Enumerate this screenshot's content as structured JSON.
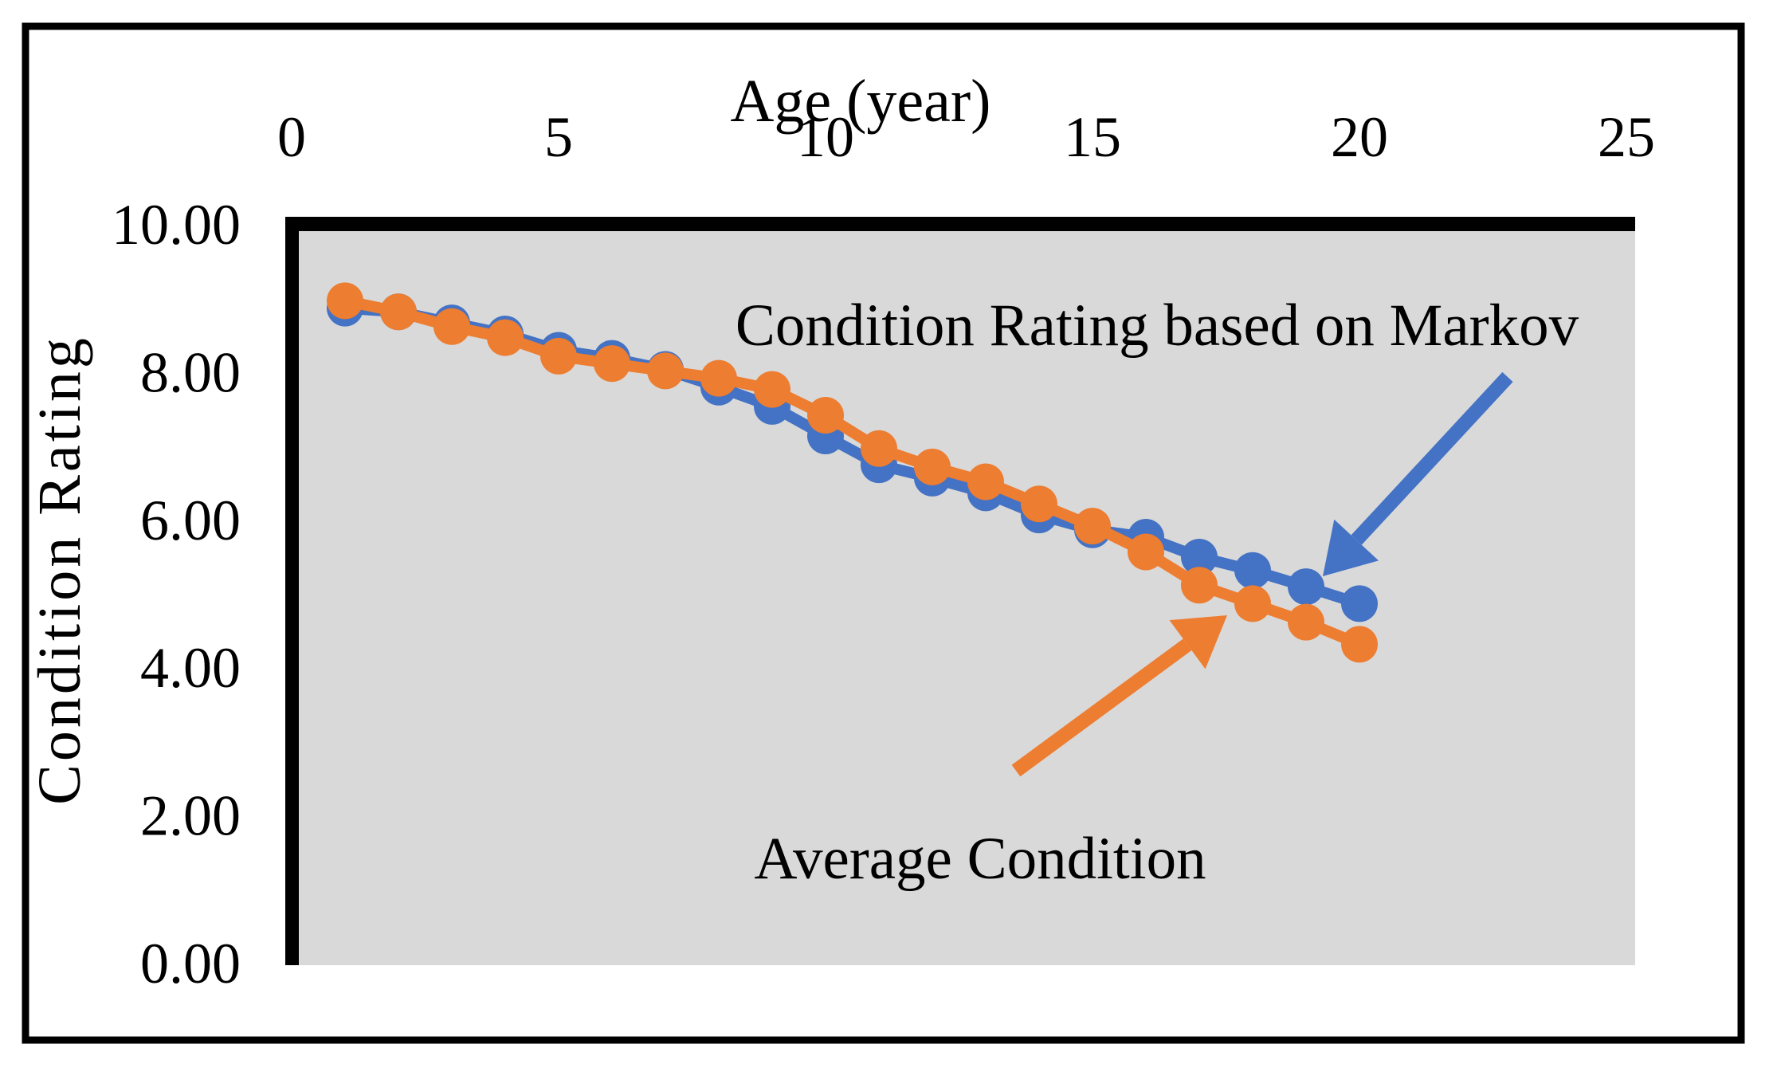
{
  "chart_data": {
    "type": "line",
    "title": "",
    "plot_background": "#D9D9D9",
    "frame_color": "#000000",
    "x_axis": {
      "label": "Age (year)",
      "ticks": [
        0,
        5,
        10,
        15,
        20,
        25
      ],
      "range": [
        0,
        25
      ],
      "position": "top"
    },
    "y_axis": {
      "label": "Condition Rating",
      "tick_labels": [
        "10.00",
        "8.00",
        "6.00",
        "4.00",
        "2.00",
        "0.00"
      ],
      "tick_values": [
        10,
        8,
        6,
        4,
        2,
        0
      ],
      "range": [
        0,
        10
      ]
    },
    "grid": "off",
    "legend": "none",
    "x": [
      1,
      2,
      3,
      4,
      5,
      6,
      7,
      8,
      9,
      10,
      11,
      12,
      13,
      14,
      15,
      16,
      17,
      18,
      19,
      20
    ],
    "series": [
      {
        "name": "Condition Rating based on Markov",
        "color": "#4472C4",
        "marker": "circle",
        "values": [
          8.85,
          8.8,
          8.65,
          8.5,
          8.28,
          8.17,
          8.02,
          7.78,
          7.52,
          7.12,
          6.73,
          6.55,
          6.35,
          6.05,
          5.85,
          5.75,
          5.48,
          5.3,
          5.08,
          4.85
        ]
      },
      {
        "name": "Average Condition",
        "color": "#ED7D31",
        "marker": "circle",
        "values": [
          8.95,
          8.8,
          8.6,
          8.45,
          8.2,
          8.1,
          8.0,
          7.9,
          7.75,
          7.4,
          6.95,
          6.7,
          6.5,
          6.2,
          5.9,
          5.55,
          5.1,
          4.85,
          4.6,
          4.3
        ]
      }
    ],
    "annotations": [
      {
        "text": "Condition Rating based on Markov",
        "arrow_color": "#4472C4",
        "points_to": "blue series near year 19"
      },
      {
        "text": "Average Condition",
        "arrow_color": "#ED7D31",
        "points_to": "orange series near year 17"
      }
    ]
  }
}
